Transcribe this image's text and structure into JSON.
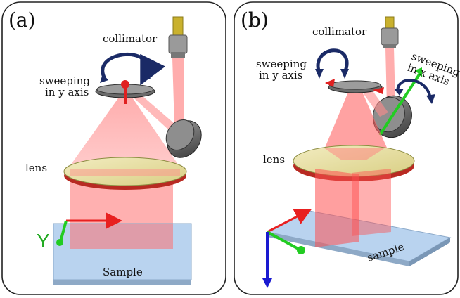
{
  "panels": [
    {
      "id": "a",
      "label": "(a)",
      "collimator": "collimator",
      "sweep_y_line1": "sweeping",
      "sweep_y_line2": "in y axis",
      "lens": "lens",
      "sample": "Sample",
      "axis_y": "Y"
    },
    {
      "id": "b",
      "label": "(b)",
      "collimator": "collimator",
      "sweep_y_line1": "sweeping",
      "sweep_y_line2": "in y axis",
      "sweep_x_line1": "sweeping",
      "sweep_x_line2": "in x axis",
      "lens": "lens",
      "sample": "sample"
    }
  ],
  "colors": {
    "beam": "#ff6b6b",
    "beam_dark": "#e83a3a",
    "lens": "#e8e0a0",
    "lens_rim": "#c0302a",
    "sample": "#b9d3ef",
    "arrow_curve": "#1a2a66",
    "axis_red": "#e82020",
    "axis_green": "#22cc22",
    "axis_blue": "#1a1ad0"
  }
}
